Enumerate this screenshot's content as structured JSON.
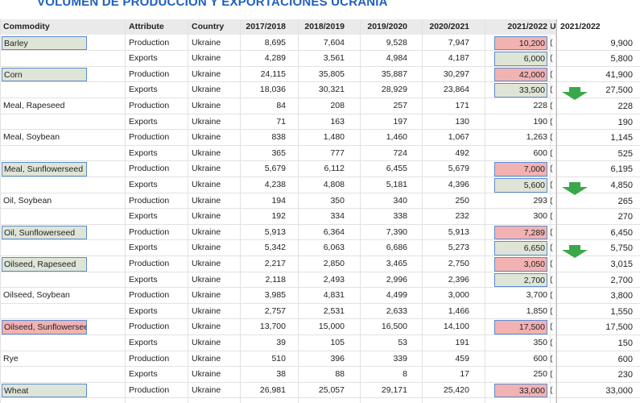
{
  "title": "VOLUMEN DE PRODUCCION Y EXPORTACIONES UCRANIA",
  "colors": {
    "green": "#dfe5d6",
    "red": "#f2b2b2",
    "arrow": "#3aa84a"
  },
  "table": {
    "columns": [
      "Commodity",
      "Attribute",
      "Country",
      "2017/2018",
      "2018/2019",
      "2019/2020",
      "2020/2021",
      "2021/2022",
      "U"
    ],
    "overlay_header": "2021/2022",
    "rows": [
      {
        "cells": [
          "Barley",
          "Production",
          "Ukraine",
          "8,695",
          "7,604",
          "9,528",
          "7,947",
          "10,200",
          "("
        ],
        "estimate": "9,900",
        "commodity_highlight": "green",
        "value_highlight": "red"
      },
      {
        "cells": [
          null,
          "Exports",
          "Ukraine",
          "4,289",
          "3,561",
          "4,984",
          "4,187",
          "6,000",
          "("
        ],
        "estimate": "5,800",
        "value_highlight": "green"
      },
      {
        "cells": [
          "Corn",
          "Production",
          "Ukraine",
          "24,115",
          "35,805",
          "35,887",
          "30,297",
          "42,000",
          "("
        ],
        "estimate": "41,900",
        "commodity_highlight": "green",
        "value_highlight": "red"
      },
      {
        "cells": [
          null,
          "Exports",
          "Ukraine",
          "18,036",
          "30,321",
          "28,929",
          "23,864",
          "33,500",
          "("
        ],
        "estimate": "27,500",
        "value_highlight": "green",
        "arrow": true
      },
      {
        "cells": [
          "Meal, Rapeseed",
          "Production",
          "Ukraine",
          "84",
          "208",
          "257",
          "171",
          "228",
          "("
        ],
        "estimate": "228"
      },
      {
        "cells": [
          null,
          "Exports",
          "Ukraine",
          "71",
          "163",
          "197",
          "130",
          "190",
          "("
        ],
        "estimate": "190"
      },
      {
        "cells": [
          "Meal, Soybean",
          "Production",
          "Ukraine",
          "838",
          "1,480",
          "1,460",
          "1,067",
          "1,263",
          "("
        ],
        "estimate": "1,145"
      },
      {
        "cells": [
          null,
          "Exports",
          "Ukraine",
          "365",
          "777",
          "724",
          "492",
          "600",
          "("
        ],
        "estimate": "525"
      },
      {
        "cells": [
          "Meal, Sunflowerseed",
          "Production",
          "Ukraine",
          "5,679",
          "6,112",
          "6,455",
          "5,679",
          "7,000",
          "("
        ],
        "estimate": "6,195",
        "commodity_highlight": "green",
        "value_highlight": "red"
      },
      {
        "cells": [
          null,
          "Exports",
          "Ukraine",
          "4,238",
          "4,808",
          "5,181",
          "4,396",
          "5,600",
          "("
        ],
        "estimate": "4,850",
        "value_highlight": "green",
        "arrow": true
      },
      {
        "cells": [
          "Oil, Soybean",
          "Production",
          "Ukraine",
          "194",
          "350",
          "340",
          "250",
          "293",
          "("
        ],
        "estimate": "265"
      },
      {
        "cells": [
          null,
          "Exports",
          "Ukraine",
          "192",
          "334",
          "338",
          "232",
          "300",
          "("
        ],
        "estimate": "270"
      },
      {
        "cells": [
          "Oil, Sunflowerseed",
          "Production",
          "Ukraine",
          "5,913",
          "6,364",
          "7,390",
          "5,913",
          "7,289",
          "("
        ],
        "estimate": "6,450",
        "commodity_highlight": "green",
        "value_highlight": "red"
      },
      {
        "cells": [
          null,
          "Exports",
          "Ukraine",
          "5,342",
          "6,063",
          "6,686",
          "5,273",
          "6,650",
          "("
        ],
        "estimate": "5,750",
        "value_highlight": "green",
        "arrow": true
      },
      {
        "cells": [
          "Oilseed, Rapeseed",
          "Production",
          "Ukraine",
          "2,217",
          "2,850",
          "3,465",
          "2,750",
          "3,050",
          "("
        ],
        "estimate": "3,015",
        "commodity_highlight": "green",
        "value_highlight": "red"
      },
      {
        "cells": [
          null,
          "Exports",
          "Ukraine",
          "2,118",
          "2,493",
          "2,996",
          "2,396",
          "2,700",
          "("
        ],
        "estimate": "2,700",
        "value_highlight": "green"
      },
      {
        "cells": [
          "Oilseed, Soybean",
          "Production",
          "Ukraine",
          "3,985",
          "4,831",
          "4,499",
          "3,000",
          "3,700",
          "("
        ],
        "estimate": "3,800"
      },
      {
        "cells": [
          null,
          "Exports",
          "Ukraine",
          "2,757",
          "2,531",
          "2,633",
          "1,466",
          "1,850",
          "("
        ],
        "estimate": "1,550"
      },
      {
        "cells": [
          "Oilseed, Sunflowerseed",
          "Production",
          "Ukraine",
          "13,700",
          "15,000",
          "16,500",
          "14,100",
          "17,500",
          "("
        ],
        "estimate": "17,500",
        "commodity_highlight": "red",
        "value_highlight": "red"
      },
      {
        "cells": [
          null,
          "Exports",
          "Ukraine",
          "39",
          "105",
          "53",
          "191",
          "350",
          "("
        ],
        "estimate": "150"
      },
      {
        "cells": [
          "Rye",
          "Production",
          "Ukraine",
          "510",
          "396",
          "339",
          "459",
          "600",
          "("
        ],
        "estimate": "600"
      },
      {
        "cells": [
          null,
          "Exports",
          "Ukraine",
          "38",
          "88",
          "8",
          "17",
          "250",
          "("
        ],
        "estimate": "230"
      },
      {
        "cells": [
          "Wheat",
          "Production",
          "Ukraine",
          "26,981",
          "25,057",
          "29,171",
          "25,420",
          "33,000",
          "("
        ],
        "estimate": "33,000",
        "commodity_highlight": "green",
        "value_highlight": "red"
      }
    ]
  }
}
